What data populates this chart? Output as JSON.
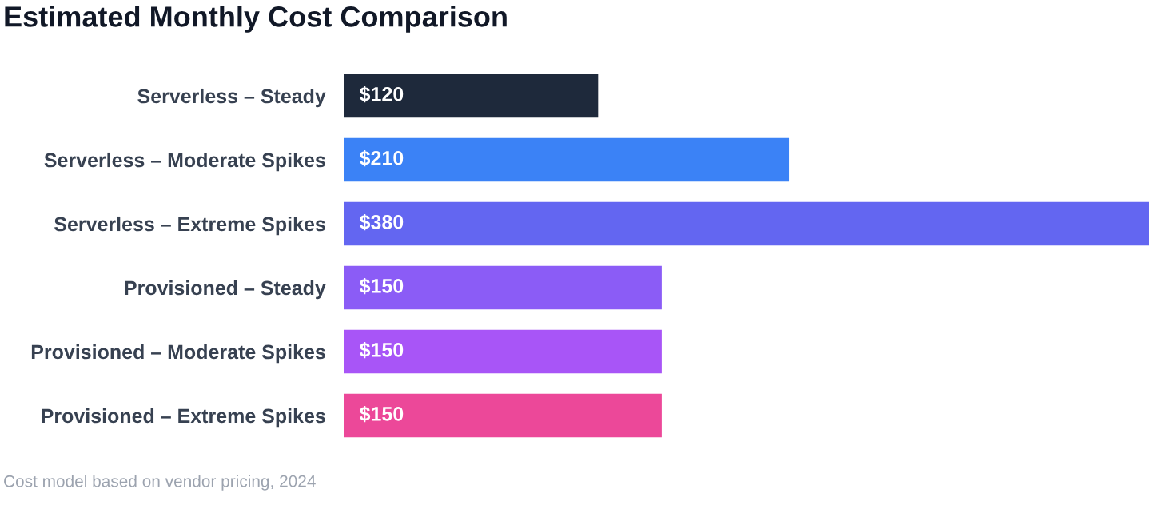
{
  "chart_data": {
    "type": "bar",
    "title": "Estimated Monthly Cost Comparison",
    "orientation": "horizontal",
    "categories": [
      "Serverless – Steady",
      "Serverless – Moderate Spikes",
      "Serverless – Extreme Spikes",
      "Provisioned – Steady",
      "Provisioned – Moderate Spikes",
      "Provisioned – Extreme Spikes"
    ],
    "values": [
      120,
      210,
      380,
      150,
      150,
      150
    ],
    "colors": [
      "#1e293b",
      "#3b82f6",
      "#6366f1",
      "#8b5cf6",
      "#a855f7",
      "#ec4899"
    ],
    "value_labels": [
      "$120",
      "$210",
      "$380",
      "$150",
      "$150",
      "$150"
    ],
    "xlim": [
      0,
      380
    ],
    "tick_labels": "y",
    "grid": false,
    "legend": false,
    "annotations": [
      "Cost model based on vendor pricing, 2024"
    ]
  }
}
